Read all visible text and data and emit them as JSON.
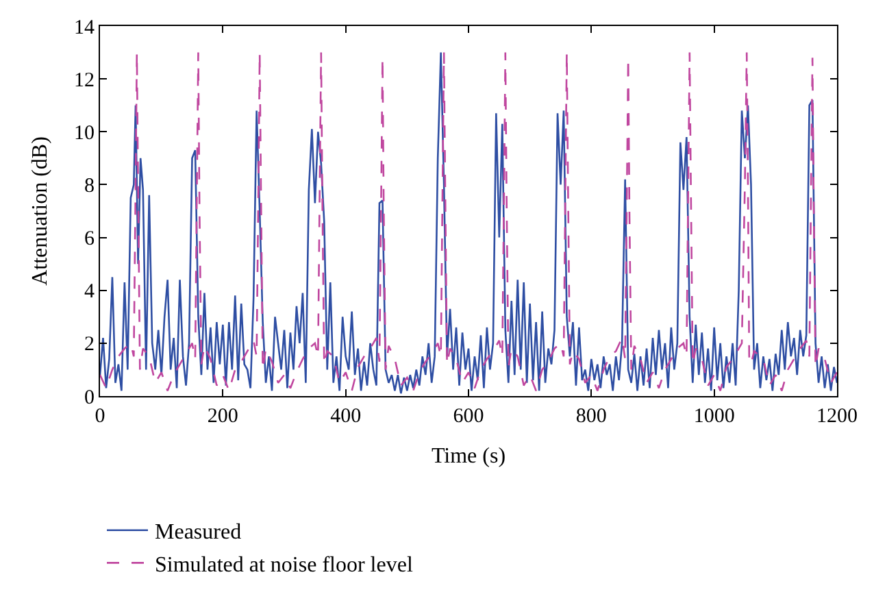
{
  "chart_data": {
    "type": "line",
    "xlabel": "Time (s)",
    "ylabel": "Attenuation (dB)",
    "xlim": [
      0,
      1200
    ],
    "xticks": [
      0,
      200,
      400,
      600,
      800,
      1000,
      1200
    ],
    "ylim": [
      0,
      14
    ],
    "yticks": [
      0,
      2,
      4,
      6,
      8,
      10,
      12,
      14
    ],
    "legend": "bottom left",
    "marker": "none",
    "series": [
      {
        "name": "Measured",
        "color": "#2e4ea3",
        "line_style": "solid",
        "x": [
          0,
          5,
          10,
          15,
          20,
          25,
          30,
          35,
          40,
          45,
          50,
          55,
          58,
          62,
          66,
          70,
          75,
          80,
          85,
          90,
          95,
          100,
          105,
          110,
          115,
          120,
          125,
          130,
          135,
          140,
          145,
          150,
          155,
          160,
          165,
          170,
          175,
          180,
          185,
          190,
          195,
          200,
          205,
          210,
          215,
          220,
          225,
          230,
          235,
          240,
          245,
          250,
          255,
          260,
          265,
          270,
          275,
          280,
          285,
          290,
          295,
          300,
          305,
          310,
          315,
          320,
          325,
          330,
          335,
          340,
          345,
          350,
          355,
          360,
          365,
          370,
          375,
          380,
          385,
          390,
          395,
          400,
          405,
          410,
          415,
          420,
          425,
          430,
          435,
          440,
          445,
          450,
          455,
          460,
          465,
          470,
          475,
          480,
          485,
          490,
          495,
          500,
          505,
          510,
          515,
          520,
          525,
          530,
          535,
          540,
          545,
          550,
          555,
          560,
          565,
          570,
          575,
          580,
          585,
          590,
          595,
          600,
          605,
          610,
          615,
          620,
          625,
          630,
          635,
          640,
          645,
          650,
          655,
          660,
          665,
          670,
          675,
          680,
          685,
          690,
          695,
          700,
          705,
          710,
          715,
          720,
          725,
          730,
          735,
          740,
          745,
          750,
          755,
          760,
          765,
          770,
          775,
          780,
          785,
          790,
          795,
          800,
          805,
          810,
          815,
          820,
          825,
          830,
          835,
          840,
          845,
          850,
          855,
          860,
          865,
          870,
          875,
          880,
          885,
          890,
          895,
          900,
          905,
          910,
          915,
          920,
          925,
          930,
          935,
          940,
          945,
          950,
          955,
          960,
          965,
          970,
          975,
          980,
          985,
          990,
          995,
          1000,
          1005,
          1010,
          1015,
          1020,
          1025,
          1030,
          1035,
          1040,
          1045,
          1050,
          1055,
          1060,
          1065,
          1070,
          1075,
          1080,
          1085,
          1090,
          1095,
          1100,
          1105,
          1110,
          1115,
          1120,
          1125,
          1130,
          1135,
          1140,
          1145,
          1150,
          1155,
          1160,
          1165,
          1170,
          1175,
          1180,
          1185,
          1190,
          1195,
          1200
        ],
        "values": [
          0.8,
          2.2,
          0.3,
          1.4,
          4.5,
          0.5,
          1.2,
          0.2,
          4.3,
          1.0,
          7.5,
          8.0,
          11.0,
          5.0,
          9.0,
          7.8,
          1.0,
          7.6,
          2.0,
          1.0,
          2.5,
          0.8,
          3.0,
          4.4,
          1.0,
          2.2,
          0.3,
          4.4,
          1.5,
          0.4,
          2.0,
          9.0,
          9.3,
          3.0,
          0.8,
          3.9,
          1.0,
          2.6,
          0.5,
          2.8,
          1.2,
          2.7,
          0.4,
          2.8,
          1.0,
          3.8,
          0.6,
          3.5,
          1.2,
          1.0,
          0.3,
          3.7,
          10.8,
          7.0,
          2.8,
          0.5,
          1.5,
          0.2,
          3.0,
          2.0,
          1.0,
          2.5,
          0.3,
          2.4,
          1.0,
          3.4,
          2.0,
          3.9,
          0.5,
          7.8,
          10.1,
          7.3,
          10.0,
          8.8,
          6.6,
          1.0,
          4.3,
          0.5,
          1.5,
          0.2,
          3.0,
          1.5,
          1.0,
          3.2,
          0.8,
          1.8,
          0.2,
          1.3,
          0.4,
          2.0,
          1.0,
          0.4,
          7.3,
          7.4,
          1.0,
          0.5,
          0.8,
          0.2,
          0.8,
          0.1,
          0.7,
          0.2,
          0.8,
          0.3,
          1.0,
          0.4,
          1.5,
          0.8,
          2.0,
          0.5,
          1.5,
          9.0,
          13.0,
          8.0,
          1.5,
          3.3,
          1.0,
          2.6,
          0.4,
          2.4,
          1.0,
          1.8,
          0.2,
          1.5,
          0.6,
          2.3,
          0.3,
          2.6,
          1.0,
          2.0,
          10.7,
          6.0,
          10.3,
          2.5,
          0.5,
          3.6,
          0.8,
          4.4,
          1.0,
          4.3,
          0.5,
          3.5,
          0.6,
          2.8,
          0.2,
          3.2,
          0.5,
          1.8,
          1.2,
          2.5,
          10.7,
          8.0,
          10.8,
          3.0,
          1.5,
          2.8,
          0.4,
          2.6,
          0.6,
          1.0,
          0.2,
          1.4,
          0.6,
          1.2,
          0.3,
          1.5,
          0.8,
          1.2,
          0.2,
          1.5,
          0.6,
          2.0,
          8.2,
          1.0,
          0.5,
          1.6,
          0.2,
          1.5,
          0.4,
          1.8,
          0.3,
          2.2,
          0.8,
          2.5,
          1.0,
          2.0,
          0.3,
          2.6,
          1.0,
          2.0,
          9.6,
          7.8,
          9.8,
          3.0,
          0.5,
          2.7,
          0.8,
          2.4,
          0.5,
          1.8,
          0.2,
          2.6,
          0.6,
          2.0,
          0.3,
          1.5,
          0.5,
          2.0,
          0.4,
          4.0,
          10.8,
          9.0,
          11.0,
          8.0,
          1.0,
          2.0,
          0.3,
          1.5,
          0.6,
          1.4,
          0.2,
          1.6,
          0.8,
          2.5,
          1.0,
          2.8,
          1.5,
          2.2,
          0.8,
          2.5,
          1.5,
          2.3,
          11.0,
          11.2,
          2.0,
          0.5,
          1.5,
          0.3,
          1.2,
          0.2,
          1.1,
          0.5
        ]
      },
      {
        "name": "Simulated at noise floor level",
        "color": "#c0479f",
        "line_style": "dashed",
        "x": [
          0,
          10,
          20,
          30,
          40,
          50,
          55,
          58,
          60,
          62,
          65,
          70,
          80,
          90,
          100,
          110,
          120,
          130,
          140,
          150,
          155,
          158,
          160,
          162,
          165,
          170,
          180,
          190,
          200,
          210,
          220,
          230,
          240,
          250,
          255,
          258,
          260,
          262,
          265,
          270,
          280,
          290,
          300,
          310,
          320,
          330,
          340,
          350,
          355,
          358,
          360,
          362,
          365,
          370,
          380,
          390,
          400,
          410,
          420,
          430,
          440,
          450,
          455,
          458,
          460,
          462,
          465,
          470,
          480,
          490,
          500,
          510,
          520,
          530,
          540,
          550,
          555,
          558,
          560,
          562,
          565,
          570,
          580,
          590,
          600,
          610,
          620,
          630,
          640,
          650,
          655,
          658,
          660,
          662,
          665,
          670,
          680,
          690,
          700,
          710,
          720,
          730,
          740,
          750,
          755,
          758,
          760,
          762,
          765,
          770,
          780,
          790,
          800,
          810,
          820,
          830,
          840,
          850,
          855,
          858,
          860,
          862,
          865,
          870,
          880,
          890,
          900,
          910,
          920,
          930,
          940,
          950,
          955,
          958,
          960,
          962,
          965,
          970,
          980,
          990,
          1000,
          1010,
          1020,
          1030,
          1040,
          1045,
          1050,
          1053,
          1055,
          1057,
          1060,
          1065,
          1080,
          1090,
          1100,
          1110,
          1120,
          1130,
          1140,
          1150,
          1155,
          1158,
          1160,
          1162,
          1165,
          1170,
          1180,
          1190,
          1200
        ],
        "values": [
          0.8,
          0.3,
          1.0,
          1.5,
          1.8,
          2.0,
          1.5,
          8.0,
          13.0,
          8.0,
          1.0,
          1.8,
          1.5,
          0.5,
          0.9,
          0.2,
          0.8,
          1.2,
          1.6,
          2.0,
          1.4,
          8.5,
          13.0,
          7.0,
          1.2,
          1.9,
          1.4,
          0.4,
          0.8,
          0.2,
          1.0,
          1.3,
          1.7,
          2.1,
          1.5,
          8.0,
          13.0,
          8.0,
          1.0,
          1.8,
          1.3,
          0.5,
          0.8,
          0.3,
          0.9,
          1.4,
          1.8,
          2.0,
          1.5,
          8.5,
          13.0,
          7.5,
          1.2,
          1.7,
          1.5,
          0.5,
          0.9,
          0.2,
          1.1,
          1.5,
          1.8,
          2.2,
          1.3,
          8.0,
          12.8,
          7.0,
          1.0,
          1.9,
          1.4,
          0.4,
          0.7,
          0.2,
          0.9,
          1.3,
          1.6,
          2.0,
          1.5,
          8.5,
          13.0,
          8.0,
          1.2,
          1.8,
          1.4,
          0.5,
          0.9,
          0.3,
          1.0,
          1.4,
          1.7,
          2.1,
          1.5,
          8.0,
          13.0,
          7.5,
          1.1,
          1.8,
          1.5,
          0.4,
          0.8,
          0.2,
          1.0,
          1.3,
          1.8,
          2.0,
          1.5,
          8.5,
          13.0,
          8.0,
          1.2,
          1.7,
          1.4,
          0.5,
          0.8,
          0.2,
          1.0,
          1.5,
          1.7,
          2.2,
          1.4,
          8.0,
          12.8,
          7.0,
          1.0,
          1.9,
          1.4,
          0.5,
          0.9,
          0.3,
          1.0,
          1.4,
          1.8,
          2.0,
          1.5,
          8.5,
          13.0,
          8.0,
          1.2,
          1.8,
          1.4,
          0.4,
          0.8,
          0.2,
          1.1,
          1.4,
          1.8,
          2.0,
          8.0,
          13.0,
          8.0,
          1.5,
          1.2,
          1.7,
          1.4,
          0.4,
          0.8,
          0.2,
          1.0,
          1.4,
          1.8,
          2.1,
          1.5,
          8.5,
          12.8,
          7.5,
          1.1,
          1.8,
          1.4,
          0.5,
          0.9
        ]
      }
    ]
  }
}
